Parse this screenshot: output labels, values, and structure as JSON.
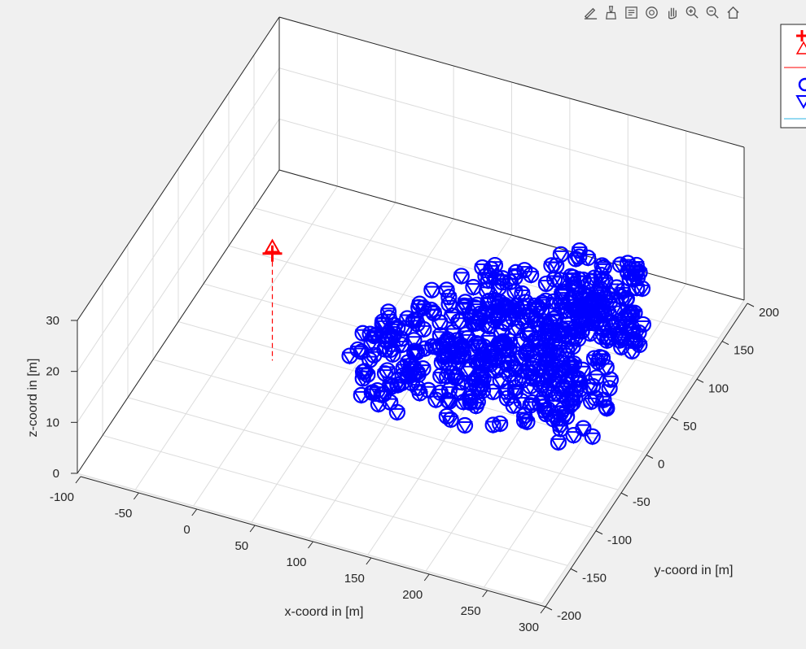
{
  "toolbar": {
    "buttons": [
      {
        "name": "edit-plot-icon"
      },
      {
        "name": "brush-data-icon"
      },
      {
        "name": "data-tips-icon"
      },
      {
        "name": "rotate-3d-icon"
      },
      {
        "name": "pan-icon"
      },
      {
        "name": "zoom-in-icon"
      },
      {
        "name": "zoom-out-icon"
      },
      {
        "name": "home-restore-view-icon"
      }
    ]
  },
  "chart_data": {
    "type": "scatter",
    "dimensions": 3,
    "title": "",
    "xlabel": "x-coord in [m]",
    "ylabel": "y-coord in [m]",
    "zlabel": "z-coord in [m]",
    "xlim": [
      -100,
      300
    ],
    "ylim": [
      -200,
      200
    ],
    "zlim": [
      0,
      30
    ],
    "xticks": [
      -100,
      -50,
      0,
      50,
      100,
      150,
      200,
      250,
      300
    ],
    "yticks": [
      -200,
      -150,
      -100,
      -50,
      0,
      50,
      100,
      150,
      200
    ],
    "zticks": [
      0,
      10,
      20,
      30
    ],
    "grid": true,
    "legend_location": "top-right (partially cut off)",
    "colors": {
      "point_cloud": "#0000ff",
      "source": "#ff0000",
      "drop_line": "#ff0000",
      "legend_line": "#2bb5e6"
    },
    "series": [
      {
        "marker": "plus",
        "color": "#ff0000",
        "points": [
          [
            -13,
            -14,
            21
          ]
        ]
      },
      {
        "marker": "triangle-up",
        "color": "#ff0000",
        "points": [
          [
            -13,
            -14,
            22
          ]
        ]
      },
      {
        "marker": "dashed-line",
        "color": "#ff0000",
        "from": [
          -13,
          -14,
          21
        ],
        "to": [
          -13,
          -14,
          0
        ]
      },
      {
        "marker": "circle+triangle-down",
        "color": "#0000ff",
        "description_bounds": {
          "x": [
            60,
            260
          ],
          "y": [
            -40,
            160
          ],
          "z": [
            0,
            12
          ]
        },
        "hull": [
          [
            60,
            -35
          ],
          [
            85,
            -40
          ],
          [
            130,
            -40
          ],
          [
            200,
            -35
          ],
          [
            240,
            -25
          ],
          [
            262,
            0
          ],
          [
            262,
            40
          ],
          [
            258,
            80
          ],
          [
            250,
            120
          ],
          [
            230,
            150
          ],
          [
            205,
            158
          ],
          [
            175,
            140
          ],
          [
            135,
            110
          ],
          [
            100,
            75
          ],
          [
            75,
            30
          ],
          [
            60,
            0
          ]
        ],
        "cloud_seed": 7,
        "cloud_count": 520
      }
    ]
  },
  "legend": {
    "entries": [
      {
        "symbol": "plus",
        "color": "#ff0000"
      },
      {
        "symbol": "triangle-up",
        "color": "#ff0000"
      },
      {
        "symbol": "line",
        "color": "#ff0000"
      },
      {
        "symbol": "circle",
        "color": "#0000ff"
      },
      {
        "symbol": "triangle-down",
        "color": "#0000ff"
      },
      {
        "symbol": "line",
        "color": "#2bb5e6"
      }
    ]
  }
}
